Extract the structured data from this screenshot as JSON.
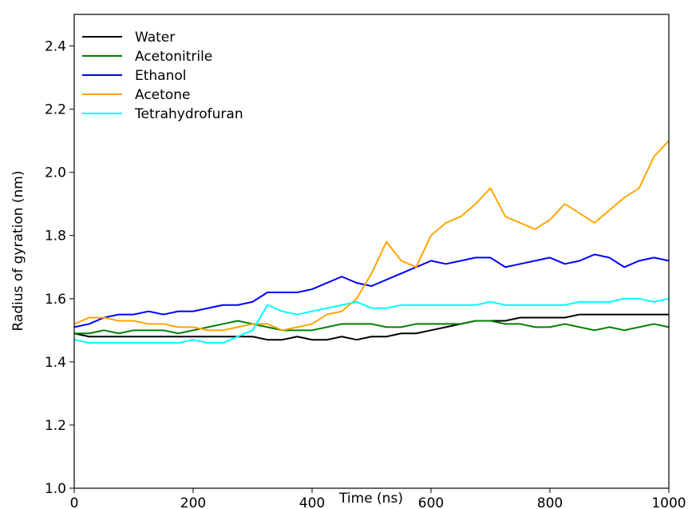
{
  "chart_data": {
    "type": "line",
    "xlabel": "Time (ns)",
    "ylabel": "Radius of gyration (nm)",
    "x": [
      0,
      25,
      50,
      75,
      100,
      125,
      150,
      175,
      200,
      225,
      250,
      275,
      300,
      325,
      350,
      375,
      400,
      425,
      450,
      475,
      500,
      525,
      550,
      575,
      600,
      625,
      650,
      675,
      700,
      725,
      750,
      775,
      800,
      825,
      850,
      875,
      900,
      925,
      950,
      975,
      1000
    ],
    "series": [
      {
        "name": "Water",
        "color": "#000000",
        "values": [
          1.49,
          1.48,
          1.48,
          1.48,
          1.48,
          1.48,
          1.48,
          1.48,
          1.48,
          1.48,
          1.48,
          1.48,
          1.48,
          1.47,
          1.47,
          1.48,
          1.47,
          1.47,
          1.48,
          1.47,
          1.48,
          1.48,
          1.49,
          1.49,
          1.5,
          1.51,
          1.52,
          1.53,
          1.53,
          1.53,
          1.54,
          1.54,
          1.54,
          1.54,
          1.55,
          1.55,
          1.55,
          1.55,
          1.55,
          1.55,
          1.55
        ]
      },
      {
        "name": "Acetonitrile",
        "color": "#008000",
        "values": [
          1.49,
          1.49,
          1.5,
          1.49,
          1.5,
          1.5,
          1.5,
          1.49,
          1.5,
          1.51,
          1.52,
          1.53,
          1.52,
          1.51,
          1.5,
          1.5,
          1.5,
          1.51,
          1.52,
          1.52,
          1.52,
          1.51,
          1.51,
          1.52,
          1.52,
          1.52,
          1.52,
          1.53,
          1.53,
          1.52,
          1.52,
          1.51,
          1.51,
          1.52,
          1.51,
          1.5,
          1.51,
          1.5,
          1.51,
          1.52,
          1.51
        ]
      },
      {
        "name": "Ethanol",
        "color": "#0000ff",
        "values": [
          1.51,
          1.52,
          1.54,
          1.55,
          1.55,
          1.56,
          1.55,
          1.56,
          1.56,
          1.57,
          1.58,
          1.58,
          1.59,
          1.62,
          1.62,
          1.62,
          1.63,
          1.65,
          1.67,
          1.65,
          1.64,
          1.66,
          1.68,
          1.7,
          1.72,
          1.71,
          1.72,
          1.73,
          1.73,
          1.7,
          1.71,
          1.72,
          1.73,
          1.71,
          1.72,
          1.74,
          1.73,
          1.7,
          1.72,
          1.73,
          1.72
        ]
      },
      {
        "name": "Acetone",
        "color": "#ffa500",
        "values": [
          1.52,
          1.54,
          1.54,
          1.53,
          1.53,
          1.52,
          1.52,
          1.51,
          1.51,
          1.5,
          1.5,
          1.51,
          1.52,
          1.52,
          1.5,
          1.51,
          1.52,
          1.55,
          1.56,
          1.6,
          1.68,
          1.78,
          1.72,
          1.7,
          1.8,
          1.84,
          1.86,
          1.9,
          1.95,
          1.86,
          1.84,
          1.82,
          1.85,
          1.9,
          1.87,
          1.84,
          1.88,
          1.92,
          1.95,
          2.05,
          2.1
        ]
      },
      {
        "name": "Tetrahydrofuran",
        "color": "#00ffff",
        "values": [
          1.47,
          1.46,
          1.46,
          1.46,
          1.46,
          1.46,
          1.46,
          1.46,
          1.47,
          1.46,
          1.46,
          1.48,
          1.5,
          1.58,
          1.56,
          1.55,
          1.56,
          1.57,
          1.58,
          1.59,
          1.57,
          1.57,
          1.58,
          1.58,
          1.58,
          1.58,
          1.58,
          1.58,
          1.59,
          1.58,
          1.58,
          1.58,
          1.58,
          1.58,
          1.59,
          1.59,
          1.59,
          1.6,
          1.6,
          1.59,
          1.6
        ]
      }
    ],
    "xlim": [
      0,
      1000
    ],
    "xticks": [
      0,
      200,
      400,
      600,
      800,
      1000
    ],
    "ylim": [
      1.0,
      2.5
    ],
    "yticks": [
      {
        "value": 1,
        "label": "1.0"
      },
      1.2,
      1.4,
      1.6,
      1.8,
      {
        "value": 2,
        "label": "2.0"
      },
      2.2,
      2.4
    ],
    "legend": "upper left",
    "grid": false
  }
}
